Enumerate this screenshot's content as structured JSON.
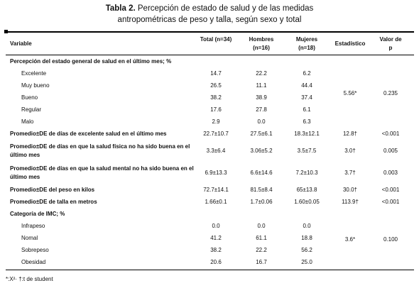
{
  "title": {
    "label": "Tabla 2.",
    "text": "Percepción de estado de salud y de las medidas antropométricas de peso y talla, según sexo y total"
  },
  "table": {
    "header": [
      "Variable",
      "Total (n=34)",
      "Hombres (n=16)",
      "Mujeres (n=18)",
      "Estadístico",
      "Valor de p"
    ],
    "blocks": [
      {
        "heading": "Percepción del estado general de salud en el último mes; %",
        "items": [
          {
            "label": "Excelente",
            "values": [
              "14.7",
              "22.2",
              "6.2"
            ]
          },
          {
            "label": "Muy bueno",
            "values": [
              "26.5",
              "11.1",
              "44.4"
            ]
          },
          {
            "label": "Bueno",
            "values": [
              "38.2",
              "38.9",
              "37.4"
            ]
          },
          {
            "label": "Regular",
            "values": [
              "17.6",
              "27.8",
              "6.1"
            ]
          },
          {
            "label": "Malo",
            "values": [
              "2.9",
              "0.0",
              "6.3"
            ]
          }
        ],
        "stat": "5.56*",
        "p": "0.235"
      },
      {
        "label": "Promedio±DE de días de excelente salud en el último mes",
        "values": [
          "22.7±10.7",
          "27.5±6.1",
          "18.3±12.1"
        ],
        "stat": "12.8†",
        "p": "<0.001"
      },
      {
        "label": "Promedio±DE de días en que la salud física no ha sido buena en el último mes",
        "values": [
          "3.3±6.4",
          "3.06±5.2",
          "3.5±7.5"
        ],
        "stat": "3.0†",
        "p": "0.005"
      },
      {
        "label": "Promedio±DE de días en que la salud mental no ha sido buena en el último mes",
        "values": [
          "6.9±13.3",
          "6.6±14.6",
          "7.2±10.3"
        ],
        "stat": "3.7†",
        "p": "0.003"
      },
      {
        "label": "Promedio±DE del peso en kilos",
        "values": [
          "72.7±14.1",
          "81.5±8.4",
          "65±13.8"
        ],
        "stat": "30.0†",
        "p": "<0.001"
      },
      {
        "label": "Promedio±DE de talla en metros",
        "values": [
          "1.66±0.1",
          "1.7±0.06",
          "1.60±0.05"
        ],
        "stat": "113.9†",
        "p": "<0.001"
      },
      {
        "heading": "Categoría de IMC; %",
        "items": [
          {
            "label": "Infrapeso",
            "values": [
              "0.0",
              "0.0",
              "0.0"
            ]
          },
          {
            "label": "Nomal",
            "values": [
              "41.2",
              "61.1",
              "18.8"
            ]
          },
          {
            "label": "Sobrepeso",
            "values": [
              "38.2",
              "22.2",
              "56.2"
            ]
          },
          {
            "label": "Obesidad",
            "values": [
              "20.6",
              "16.7",
              "25.0"
            ]
          }
        ],
        "stat": "3.6*",
        "p": "0.100"
      }
    ],
    "footnote": "*:X²· †:t de student"
  }
}
